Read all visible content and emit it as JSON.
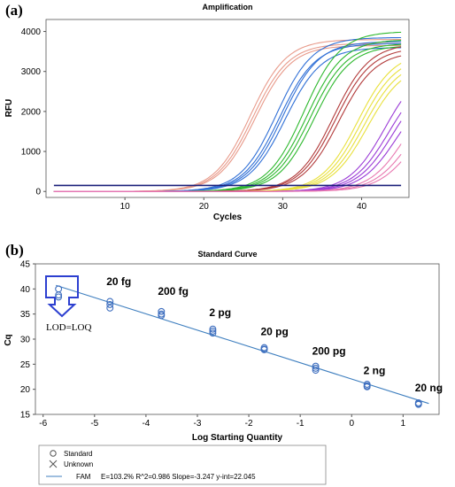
{
  "panel_a": {
    "label": "(a)"
  },
  "panel_b": {
    "label": "(b)"
  },
  "chart_data": [
    {
      "type": "line",
      "title": "Amplification",
      "xlabel": "Cycles",
      "ylabel": "RFU",
      "xlim": [
        0,
        46
      ],
      "ylim": [
        -150,
        4300
      ],
      "xticks": [
        "10",
        "20",
        "30",
        "40"
      ],
      "yticks": [
        "0",
        "1000",
        "2000",
        "3000",
        "4000"
      ],
      "threshold": {
        "value": 150,
        "color": "#1a1f7a"
      },
      "grid": false,
      "series": [
        {
          "color": "#e89a8a",
          "curves": [
            {
              "cq": 22.7,
              "max": 3800
            },
            {
              "cq": 23.0,
              "max": 3700
            },
            {
              "cq": 23.3,
              "max": 3650
            }
          ]
        },
        {
          "color": "#2f6fd6",
          "curves": [
            {
              "cq": 26.0,
              "max": 3850
            },
            {
              "cq": 26.4,
              "max": 3700
            },
            {
              "cq": 26.8,
              "max": 3750
            },
            {
              "cq": 27.1,
              "max": 3600
            }
          ]
        },
        {
          "color": "#2db82d",
          "curves": [
            {
              "cq": 29.5,
              "max": 4000
            },
            {
              "cq": 29.9,
              "max": 3800
            },
            {
              "cq": 30.3,
              "max": 3700
            },
            {
              "cq": 30.8,
              "max": 3650
            }
          ]
        },
        {
          "color": "#b23a3a",
          "curves": [
            {
              "cq": 33.2,
              "max": 3700
            },
            {
              "cq": 33.5,
              "max": 3600
            },
            {
              "cq": 33.9,
              "max": 3500
            }
          ]
        },
        {
          "color": "#e8e03a",
          "curves": [
            {
              "cq": 36.3,
              "max": 3500
            },
            {
              "cq": 36.7,
              "max": 3400
            },
            {
              "cq": 37.1,
              "max": 3300
            },
            {
              "cq": 37.5,
              "max": 3200
            }
          ]
        },
        {
          "color": "#9a3ad6",
          "curves": [
            {
              "cq": 39.8,
              "max": 3200
            },
            {
              "cq": 40.3,
              "max": 3000
            },
            {
              "cq": 40.8,
              "max": 2900
            },
            {
              "cq": 41.3,
              "max": 2700
            }
          ]
        },
        {
          "color": "#e878b0",
          "curves": [
            {
              "cq": 42.5,
              "max": 2800
            },
            {
              "cq": 43.0,
              "max": 2500
            },
            {
              "cq": 43.5,
              "max": 2300
            }
          ]
        }
      ]
    },
    {
      "type": "scatter",
      "title": "Standard Curve",
      "xlabel": "Log Starting Quantity",
      "ylabel": "Cq",
      "xlim": [
        -6.15,
        1.7
      ],
      "ylim": [
        15,
        45
      ],
      "xticks": [
        "-6",
        "-5",
        "-4",
        "-3",
        "-2",
        "-1",
        "0",
        "1"
      ],
      "yticks": [
        "15",
        "20",
        "25",
        "30",
        "35",
        "40",
        "45"
      ],
      "grid": false,
      "points": [
        {
          "x": -5.7,
          "y": 40.0
        },
        {
          "x": -5.7,
          "y": 38.8
        },
        {
          "x": -5.7,
          "y": 38.4
        },
        {
          "x": -4.7,
          "y": 37.5
        },
        {
          "x": -4.7,
          "y": 36.9
        },
        {
          "x": -4.7,
          "y": 36.2
        },
        {
          "x": -3.7,
          "y": 35.5
        },
        {
          "x": -3.7,
          "y": 35.0
        },
        {
          "x": -3.7,
          "y": 34.7
        },
        {
          "x": -2.7,
          "y": 32.0
        },
        {
          "x": -2.7,
          "y": 31.6
        },
        {
          "x": -2.7,
          "y": 31.2
        },
        {
          "x": -1.7,
          "y": 28.3
        },
        {
          "x": -1.7,
          "y": 28.0
        },
        {
          "x": -1.7,
          "y": 27.9
        },
        {
          "x": -0.7,
          "y": 24.6
        },
        {
          "x": -0.7,
          "y": 24.2
        },
        {
          "x": -0.7,
          "y": 23.8
        },
        {
          "x": 0.3,
          "y": 21.0
        },
        {
          "x": 0.3,
          "y": 20.7
        },
        {
          "x": 0.3,
          "y": 20.5
        },
        {
          "x": 1.3,
          "y": 17.3
        },
        {
          "x": 1.3,
          "y": 17.1
        },
        {
          "x": 1.3,
          "y": 17.0
        }
      ],
      "fit": {
        "slope": -3.247,
        "intercept": 22.045,
        "x_range": [
          -5.75,
          1.5
        ],
        "color": "#3f7fbf"
      },
      "annotations": [
        {
          "label": "20 fg",
          "x": -4.7,
          "y": 40.8
        },
        {
          "label": "200 fg",
          "x": -3.7,
          "y": 38.8
        },
        {
          "label": "2 pg",
          "x": -2.7,
          "y": 34.6
        },
        {
          "label": "20 pg",
          "x": -1.7,
          "y": 30.8
        },
        {
          "label": "200 pg",
          "x": -0.7,
          "y": 26.9
        },
        {
          "label": "2 ng",
          "x": 0.3,
          "y": 23.0
        },
        {
          "label": "20 ng",
          "x": 1.3,
          "y": 19.6
        }
      ],
      "lod_label": "LOD=LOQ",
      "marker_color": "#3f6fbf",
      "highlight_color": "#2c3fd0",
      "legend": {
        "placement": "bottom-left",
        "items": [
          {
            "symbol": "circle",
            "label": "Standard"
          },
          {
            "symbol": "x",
            "label": "Unknown"
          },
          {
            "symbol": "line",
            "label": "FAM",
            "stats": "E=103.2% R^2=0.986 Slope=-3.247 y-int=22.045"
          }
        ]
      }
    }
  ]
}
